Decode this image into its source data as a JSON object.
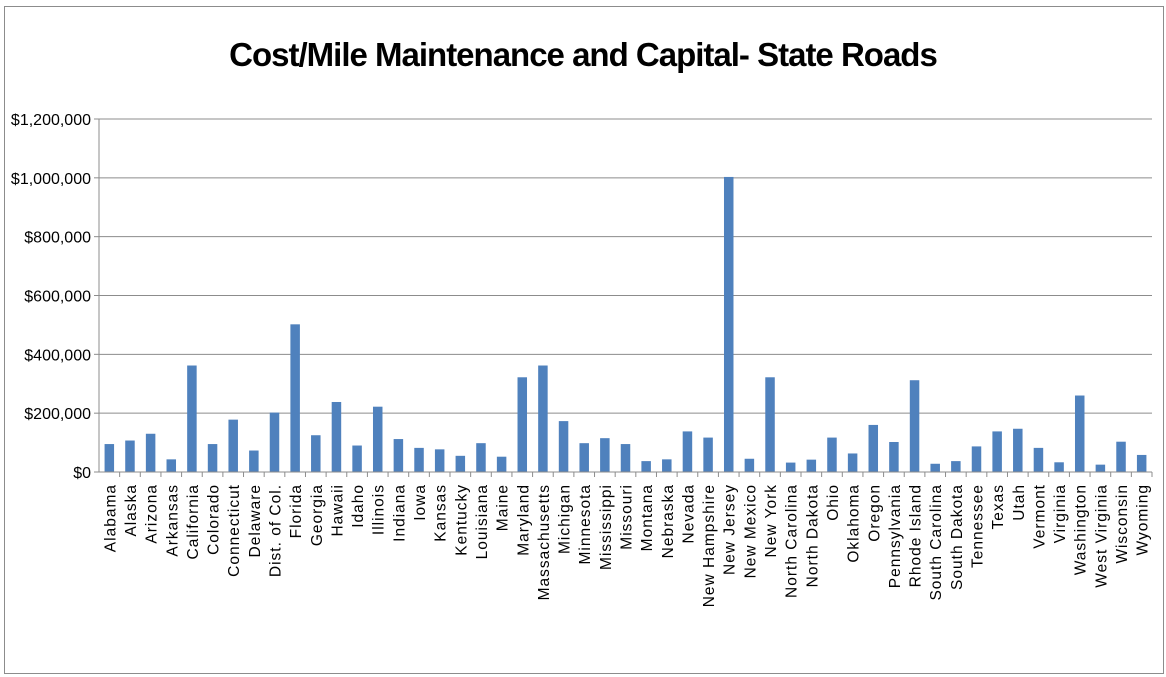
{
  "chart_data": {
    "type": "bar",
    "title": "Cost/Mile Maintenance and Capital- State Roads",
    "xlabel": "",
    "ylabel": "",
    "ylim": [
      0,
      1200000
    ],
    "yticks": [
      0,
      200000,
      400000,
      600000,
      800000,
      1000000,
      1200000
    ],
    "ytick_labels": [
      "$0",
      "$200,000",
      "$400,000",
      "$600,000",
      "$800,000",
      "$1,000,000",
      "$1,200,000"
    ],
    "grid": true,
    "legend": "none",
    "bar_color": "#4f81bd",
    "grid_color": "#8c8c8c",
    "categories": [
      "Alabama",
      "Alaska",
      "Arizona",
      "Arkansas",
      "California",
      "Colorado",
      "Connecticut",
      "Delaware",
      "Dist. of Col.",
      "Florida",
      "Georgia",
      "Hawaii",
      "Idaho",
      "Illinois",
      "Indiana",
      "Iowa",
      "Kansas",
      "Kentucky",
      "Louisiana",
      "Maine",
      "Maryland",
      "Massachusetts",
      "Michigan",
      "Minnesota",
      "Mississippi",
      "Missouri",
      "Montana",
      "Nebraska",
      "Nevada",
      "New Hampshire",
      "New Jersey",
      "New Mexico",
      "New York",
      "North Carolina",
      "North Dakota",
      "Ohio",
      "Oklahoma",
      "Oregon",
      "Pennsylvania",
      "Rhode Island",
      "South Carolina",
      "South Dakota",
      "Tennessee",
      "Texas",
      "Utah",
      "Vermont",
      "Virginia",
      "Washington",
      "West Virginia",
      "Wisconsin",
      "Wyoming"
    ],
    "values": [
      95000,
      107000,
      130000,
      43000,
      362000,
      95000,
      178000,
      73000,
      202000,
      502000,
      125000,
      238000,
      90000,
      222000,
      112000,
      82000,
      77000,
      55000,
      98000,
      52000,
      322000,
      362000,
      173000,
      98000,
      115000,
      95000,
      37000,
      43000,
      138000,
      117000,
      1003000,
      45000,
      322000,
      32000,
      42000,
      117000,
      63000,
      160000,
      102000,
      312000,
      28000,
      37000,
      87000,
      138000,
      147000,
      82000,
      33000,
      260000,
      25000,
      103000,
      58000
    ]
  }
}
